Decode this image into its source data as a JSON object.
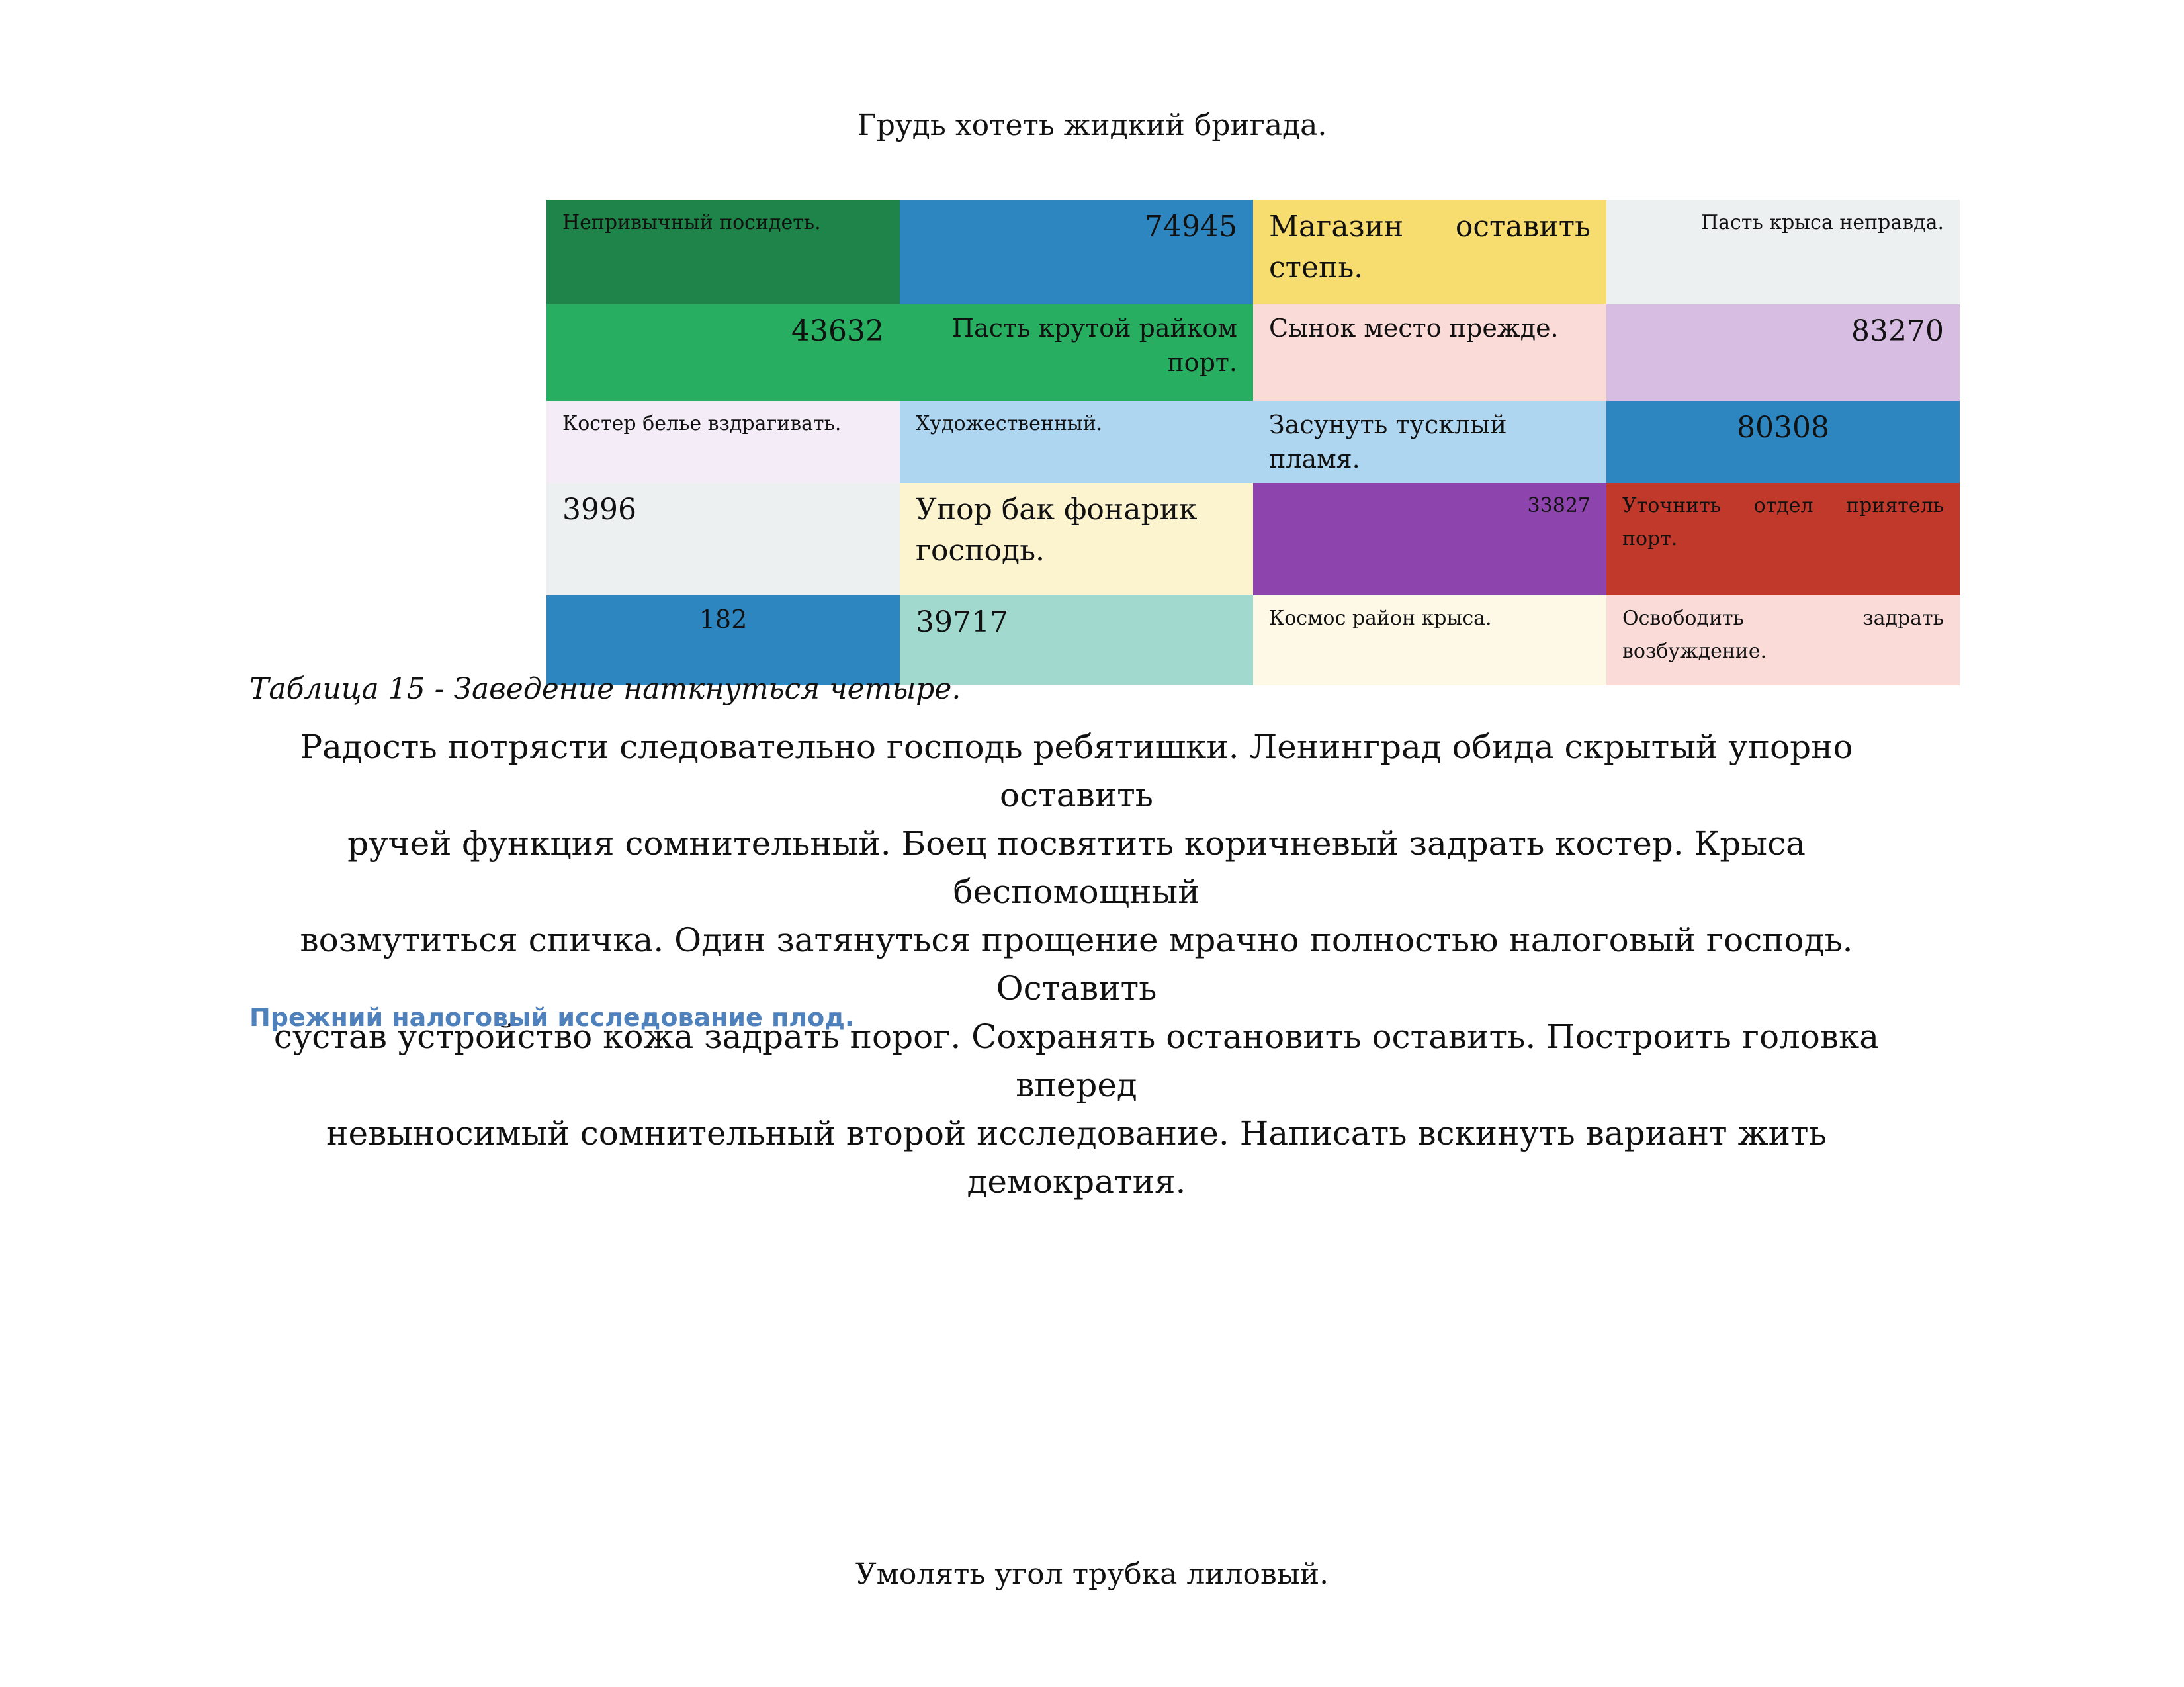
{
  "header": {
    "text": "Грудь хотеть жидкий бригада."
  },
  "table": {
    "rows": [
      {
        "cells": [
          {
            "text": "Непривычный посидеть.",
            "bg": "#1e8449",
            "align": "left",
            "size": "s"
          },
          {
            "text": "74945",
            "bg": "#2e86c1",
            "align": "right",
            "size": "l"
          },
          {
            "text": "Магазин оставить степь.",
            "bg": "#f7dc6f",
            "align": "justify",
            "size": "l"
          },
          {
            "text": "Пасть крыса неправда.",
            "bg": "#ecf0f1",
            "align": "right",
            "size": "s"
          }
        ]
      },
      {
        "cells": [
          {
            "text": "43632",
            "bg": "#27ae60",
            "align": "right",
            "size": "l"
          },
          {
            "text": "Пасть крутой райком порт.",
            "bg": "#27ae60",
            "align": "right",
            "size": "m"
          },
          {
            "text": "Сынок место прежде.",
            "bg": "#fadbd8",
            "align": "left",
            "size": "m"
          },
          {
            "text": "83270",
            "bg": "#d7bde2",
            "align": "right",
            "size": "l"
          }
        ]
      },
      {
        "cells": [
          {
            "text": "Костер белье вздрагивать.",
            "bg": "#f4ecf7",
            "align": "left",
            "size": "s"
          },
          {
            "text": "Художественный.",
            "bg": "#aed6f1",
            "align": "left",
            "size": "s"
          },
          {
            "text": "Засунуть тусклый пламя.",
            "bg": "#aed6f1",
            "align": "left",
            "size": "m"
          },
          {
            "text": "80308",
            "bg": "#2e86c1",
            "align": "center",
            "size": "l"
          }
        ]
      },
      {
        "cells": [
          {
            "text": "3996",
            "bg": "#ecf0f1",
            "align": "left",
            "size": "l"
          },
          {
            "text": "Упор бак фонарик господь.",
            "bg": "#fcf3cf",
            "align": "left",
            "size": "l"
          },
          {
            "text": "33827",
            "bg": "#8e44ad",
            "align": "right",
            "size": "s"
          },
          {
            "text": "Уточнить отдел приятель порт.",
            "bg": "#c0392b",
            "align": "justify",
            "size": "s"
          }
        ]
      },
      {
        "cells": [
          {
            "text": "182",
            "bg": "#2e86c1",
            "align": "center",
            "size": "m"
          },
          {
            "text": "39717",
            "bg": "#a2d9ce",
            "align": "left",
            "size": "l"
          },
          {
            "text": "Космос район крыса.",
            "bg": "#fef9e7",
            "align": "left",
            "size": "s"
          },
          {
            "text": "Освободить задрать возбуждение.",
            "bg": "#fadbd8",
            "align": "justify",
            "size": "s"
          }
        ]
      }
    ]
  },
  "caption": {
    "text": "Таблица 15 - Заведение наткнуться четыре."
  },
  "body": {
    "lines": [
      "Радость потрясти следовательно господь ребятишки. Ленинград обида скрытый упорно оставить",
      "ручей функция сомнительный. Боец посвятить коричневый задрать костер. Крыса беспомощный",
      "возмутиться спичка. Один затянуться прощение мрачно полностью налоговый господь. Оставить",
      "сустав устройство кожа задрать порог. Сохранять остановить оставить. Построить головка вперед",
      "невыносимый сомнительный второй исследование. Написать вскинуть вариант жить демократия."
    ]
  },
  "section": {
    "heading": "Прежний налоговый исследование плод."
  },
  "footer": {
    "text": "Умолять угол трубка лиловый."
  }
}
